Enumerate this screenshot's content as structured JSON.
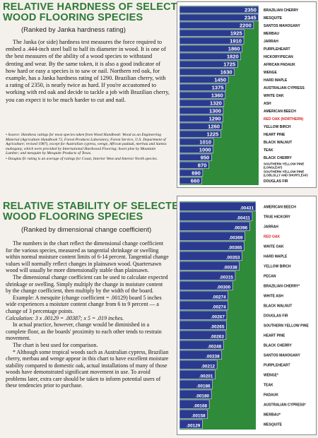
{
  "hardness": {
    "title_line1": "RELATIVE HARDNESS OF SELECTED",
    "title_line2": "WOOD FLOORING SPECIES",
    "subtitle": "(Ranked by Janka hardness rating)",
    "body": [
      "The Janka (or side) hardness test measures the force required to embed a .444-inch steel ball to half its diameter in wood. It is one of the best measures of the ability of a wood species to withstand denting and wear. By the same token, it is also a good indicator of how hard or easy a species is to saw or nail. Northern red oak, for example, has a Janka hardness rating of 1290. Brazilian cherry, with a rating of 2350, is nearly twice as hard. If you're accustomed to working with red oak and decide to tackle a job with Brazilian cherry, you can expect it to be much harder to cut and nail."
    ],
    "notes": [
      "• Source: Hardness ratings for most species taken from Wood Handbook: Wood as an Engineering Material (Agriculture Handbook 72, Forest Products Laboratory, Forest Service, U.S. Department of Agriculture; revised 1987), except for Australian cypress, wenge, African padauk, merbau and Santos mahogany, which were provided by International Hardwood Flooring; heart pine by Mountain Lumber; and mesquite by Mesquite Products of Texas.",
      "• Douglas fir rating is an average of ratings for Coast, Interior West and Interior North species."
    ]
  },
  "stability": {
    "title_line1": "RELATIVE STABILITY OF SELECTED",
    "title_line2": "WOOD FLOORING SPECIES",
    "subtitle": "(Ranked by dimensional change coefficient)",
    "body": [
      "The numbers in the chart reflect the dimensional change coefficient for the various species, measured as tangential shrinkage or swelling within normal moisture content limits of 6-14 percent. Tangential change values will normally reflect changes in plainsawn wood. Quartersawn wood will usually be more dimensionally stable than plainsawn.",
      "The dimensional change coefficient can be used to calculate expected shrinkage or swelling. Simply multiply the change in moisture content by the change coefficient, then multiply by the width of the board.",
      "Example: A mesquite (change coefficient = .00129) board 5 inches wide experiences a moisture content change from 6  to 9 percent — a change of 3 percentage points.",
      "Calculation: 3 x .00129 = .00387; x 5 = .019 inches.",
      "In actual practice, however, change would be diminished in a complete floor, as the boards' proximity to each other tends to restrain movement.",
      "The chart is best used for comparison.",
      "* Although some tropical woods such as Australian cypress, Brazilian cherry, merbau and wenge appear in this chart to have excellent moisture stability compared to domestic oak, actual installations of many of those woods have demonstrated significant movement in use. To avoid problems later, extra care should be taken to inform potential users of these tendencies prior to purchase."
    ]
  },
  "colors": {
    "blue": "#2b3a8f",
    "green": "#2f8a3a",
    "label_text": "#ffffff",
    "highlight": "#d0201e",
    "title": "#2d7a36"
  },
  "chart_data": [
    {
      "type": "bar",
      "orientation": "horizontal",
      "title": "RELATIVE HARDNESS OF SELECTED WOOD FLOORING SPECIES",
      "subtitle": "(Ranked by Janka hardness rating)",
      "categories": [
        "BRAZILIAN CHERRY",
        "MESQUITE",
        "SANTOS MAHOGANY",
        "MERBAU",
        "JARRAH",
        "PURPLEHEART",
        "HICKORY/PECAN",
        "AFRICAN PADAUK",
        "WENGE",
        "HARD MAPLE",
        "AUSTRALIAN CYPRESS",
        "WHITE OAK",
        "ASH",
        "AMERICAN BEECH",
        "RED OAK (NORTHERN)",
        "YELLOW BIRCH",
        "HEART PINE",
        "BLACK WALNUT",
        "TEAK",
        "BLACK CHERRY",
        "SOUTHERN YELLOW PINE (LONGLEAF)",
        "SOUTHERN YELLOW PINE (LOBLOLLY AND SHORTLEAF)",
        "DOUGLAS FIR"
      ],
      "values": [
        2350,
        2345,
        2200,
        1925,
        1910,
        1860,
        1820,
        1725,
        1630,
        1450,
        1375,
        1360,
        1320,
        1300,
        1290,
        1260,
        1225,
        1010,
        1000,
        950,
        870,
        690,
        660
      ],
      "value_labels": [
        "2350",
        "2345",
        "2200",
        "1925",
        "1910",
        "1860",
        "1820",
        "1725",
        "1630",
        "1450",
        "1375",
        "1360",
        "1320",
        "1300",
        "1290",
        "1260",
        "1225",
        "1010",
        "1000",
        "950",
        "870",
        "690",
        "660"
      ],
      "highlight": "RED OAK (NORTHERN)",
      "xlim": [
        0,
        2350
      ]
    },
    {
      "type": "bar",
      "orientation": "horizontal",
      "title": "RELATIVE STABILITY OF SELECTED WOOD FLOORING SPECIES",
      "subtitle": "(Ranked by dimensional change coefficient)",
      "categories": [
        "AMERICAN BEECH",
        "TRUE HICKORY",
        "JARRAH",
        "RED OAK",
        "WHITE OAK",
        "HARD MAPLE",
        "YELLOW BIRCH",
        "PECAN",
        "BRAZILIAN CHERRY*",
        "WHITE ASH",
        "BLACK WALNUT",
        "DOUGLAS FIR",
        "SOUTHERN YELLOW PINE",
        "HEART PINE",
        "BLACK CHERRY",
        "SANTOS MAHOGANY",
        "PURPLEHEART",
        "WENGE*",
        "TEAK",
        "PADAUK",
        "AUSTRALIAN CYPRESS*",
        "MERBAU*",
        "MESQUITE"
      ],
      "values": [
        0.00431,
        0.00411,
        0.00396,
        0.00369,
        0.00365,
        0.00353,
        0.00338,
        0.00315,
        0.003,
        0.00274,
        0.00274,
        0.00267,
        0.00265,
        0.00263,
        0.00248,
        0.00238,
        0.00212,
        0.00201,
        0.00186,
        0.0018,
        0.00168,
        0.00158,
        0.00129
      ],
      "value_labels": [
        ".00431",
        ".00411",
        ".00396",
        ".00369",
        ".00365",
        ".00353",
        ".00338",
        ".00315",
        ".00300",
        ".00274",
        ".00274",
        ".00267",
        ".00265",
        ".00263",
        ".00248",
        ".00238",
        ".00212",
        ".00201",
        ".00186",
        ".00180",
        ".00168",
        ".00158",
        ".00129"
      ],
      "highlight": "RED OAK",
      "xlim": [
        0,
        0.00431
      ]
    }
  ]
}
